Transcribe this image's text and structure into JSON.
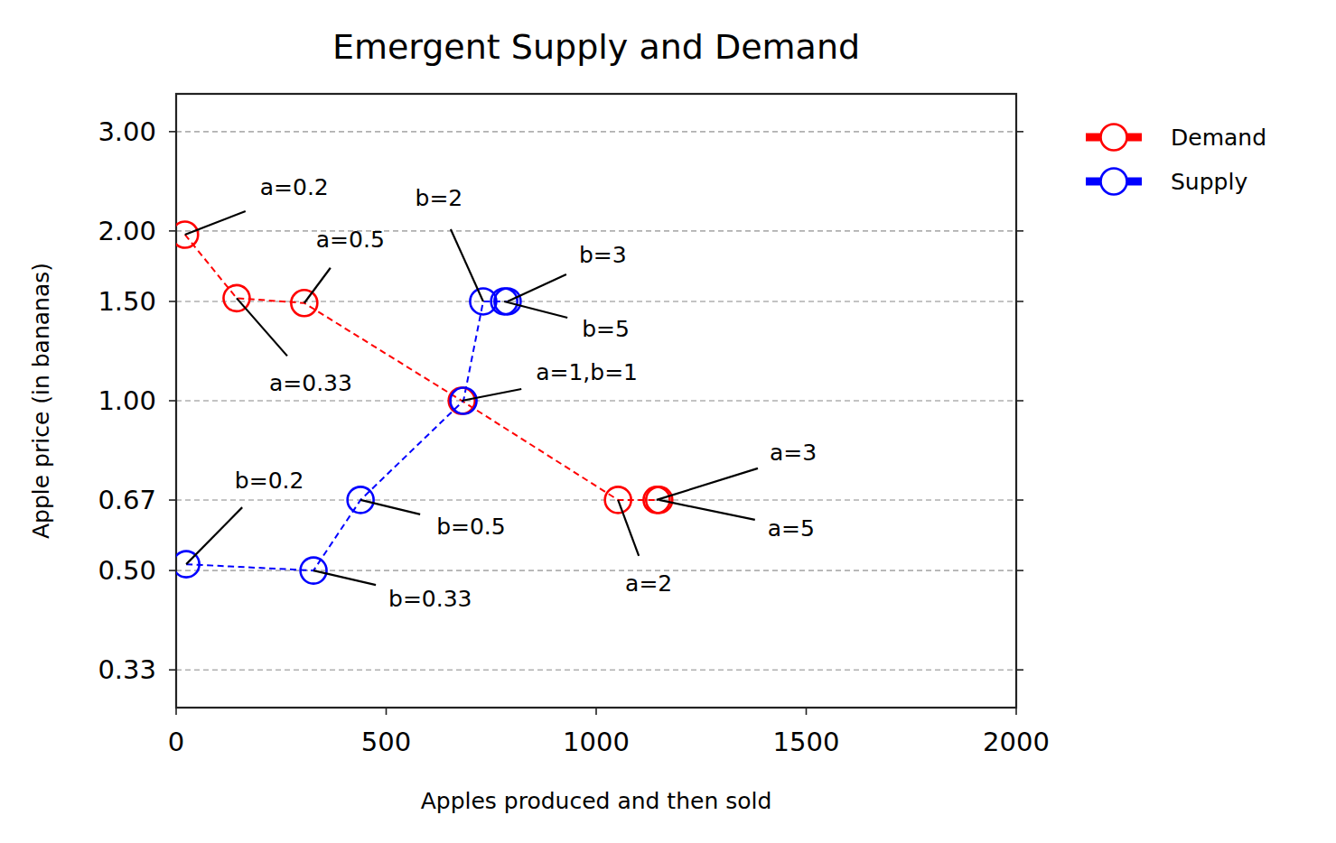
{
  "chart_data": {
    "type": "line",
    "title": "Emergent Supply and Demand",
    "x_label": "Apples produced and then sold",
    "y_label": "Apple price (in bananas)",
    "log": "y",
    "grid": true,
    "legend": "right",
    "xlim": [
      0,
      2000
    ],
    "xticks": [
      0,
      500,
      1000,
      1500,
      2000
    ],
    "ylim": [
      0.2857,
      3.5
    ],
    "yticks": [
      {
        "value": 0.3333,
        "label": "0.33"
      },
      {
        "value": 0.5,
        "label": "0.50"
      },
      {
        "value": 0.6667,
        "label": "0.67"
      },
      {
        "value": 1,
        "label": "1.00"
      },
      {
        "value": 1.5,
        "label": "1.50"
      },
      {
        "value": 2,
        "label": "2.00"
      },
      {
        "value": 3,
        "label": "3.00"
      }
    ],
    "series": [
      {
        "name": "Demand",
        "color": "#ff0000",
        "marker": "circle",
        "line_style": "dashed",
        "x": [
          21,
          144,
          305,
          680,
          1052,
          1144,
          1150
        ],
        "values": [
          1.97,
          1.52,
          1.49,
          1.0,
          0.667,
          0.667,
          0.667
        ],
        "point_labels": [
          "a=0.2",
          "a=0.33",
          "a=0.5",
          "a=1,b=1",
          "a=2",
          "a=3",
          "a=5"
        ]
      },
      {
        "name": "Supply",
        "color": "#0000ff",
        "marker": "circle",
        "line_style": "dashed",
        "x": [
          24,
          327,
          439,
          684,
          731,
          789,
          781
        ],
        "values": [
          0.513,
          0.5,
          0.667,
          1.0,
          1.5,
          1.5,
          1.5
        ],
        "point_labels": [
          "b=0.2",
          "b=0.33",
          "b=0.5",
          null,
          "b=2",
          "b=3",
          "b=5"
        ]
      }
    ]
  }
}
